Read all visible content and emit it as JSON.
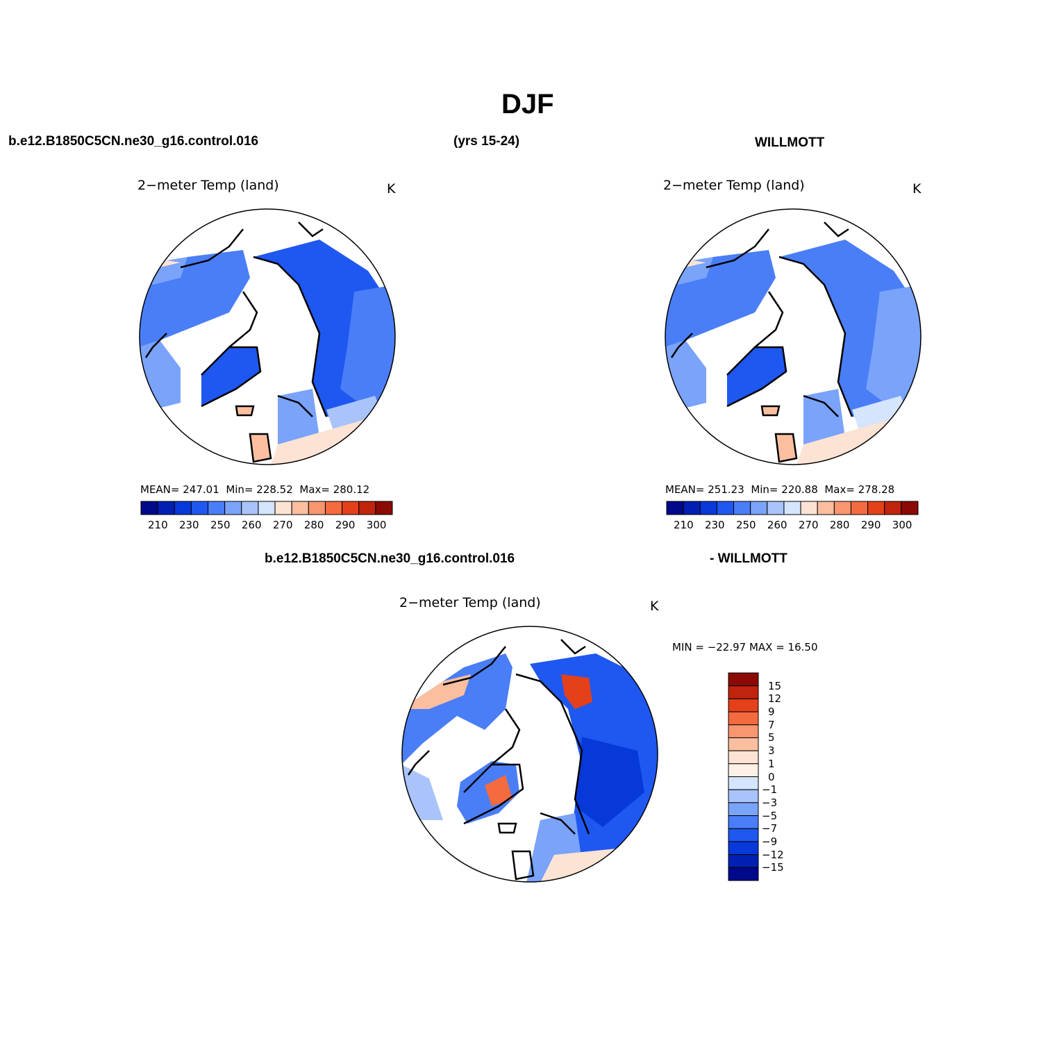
{
  "page": {
    "title": "DJF",
    "case_name": "b.e12.B1850C5CN.ne30_g16.control.016",
    "years": "(yrs 15-24)",
    "obs_name": "WILLMOTT",
    "diff_case_name": "b.e12.B1850C5CN.ne30_g16.control.016",
    "diff_obs_name": "- WILLMOTT"
  },
  "colors": {
    "abs_palette": [
      "#00098a",
      "#0020b3",
      "#0739d9",
      "#1e58f0",
      "#4a7ef7",
      "#7aa3fa",
      "#a8c4fb",
      "#d4e5fd",
      "#fde3d4",
      "#fbbfa0",
      "#f89670",
      "#f36b3f",
      "#e4401a",
      "#c0240c",
      "#8b0a05"
    ],
    "diff_palette": [
      "#00098a",
      "#0020b3",
      "#0739d9",
      "#1e58f0",
      "#4a7ef7",
      "#7aa3fa",
      "#a8c4fb",
      "#d4e5fd",
      "#fde3d4",
      "#fbbfa0",
      "#f89670",
      "#f36b3f",
      "#e4401a",
      "#c0240c",
      "#8b0a05"
    ]
  },
  "panels": [
    {
      "id": "model",
      "title": "2−meter Temp (land)",
      "units": "K",
      "mean_label": "MEAN=",
      "mean": "247.01",
      "min_label": "Min=",
      "min": "228.52",
      "max_label": "Max=",
      "max": "280.12",
      "colorbar_ticks": [
        "210",
        "230",
        "250",
        "260",
        "270",
        "280",
        "290",
        "300"
      ]
    },
    {
      "id": "obs",
      "title": "2−meter Temp (land)",
      "units": "K",
      "mean_label": "MEAN=",
      "mean": "251.23",
      "min_label": "Min=",
      "min": "220.88",
      "max_label": "Max=",
      "max": "278.28",
      "colorbar_ticks": [
        "210",
        "230",
        "250",
        "260",
        "270",
        "280",
        "290",
        "300"
      ]
    },
    {
      "id": "diff",
      "title": "2−meter Temp (land)",
      "units": "K",
      "minmax_text": "MIN = −22.97 MAX =  16.50",
      "colorbar_ticks": [
        "15",
        "12",
        "9",
        "7",
        "5",
        "3",
        "1",
        "0",
        "−1",
        "−3",
        "−5",
        "−7",
        "−9",
        "−12",
        "−15"
      ]
    }
  ]
}
